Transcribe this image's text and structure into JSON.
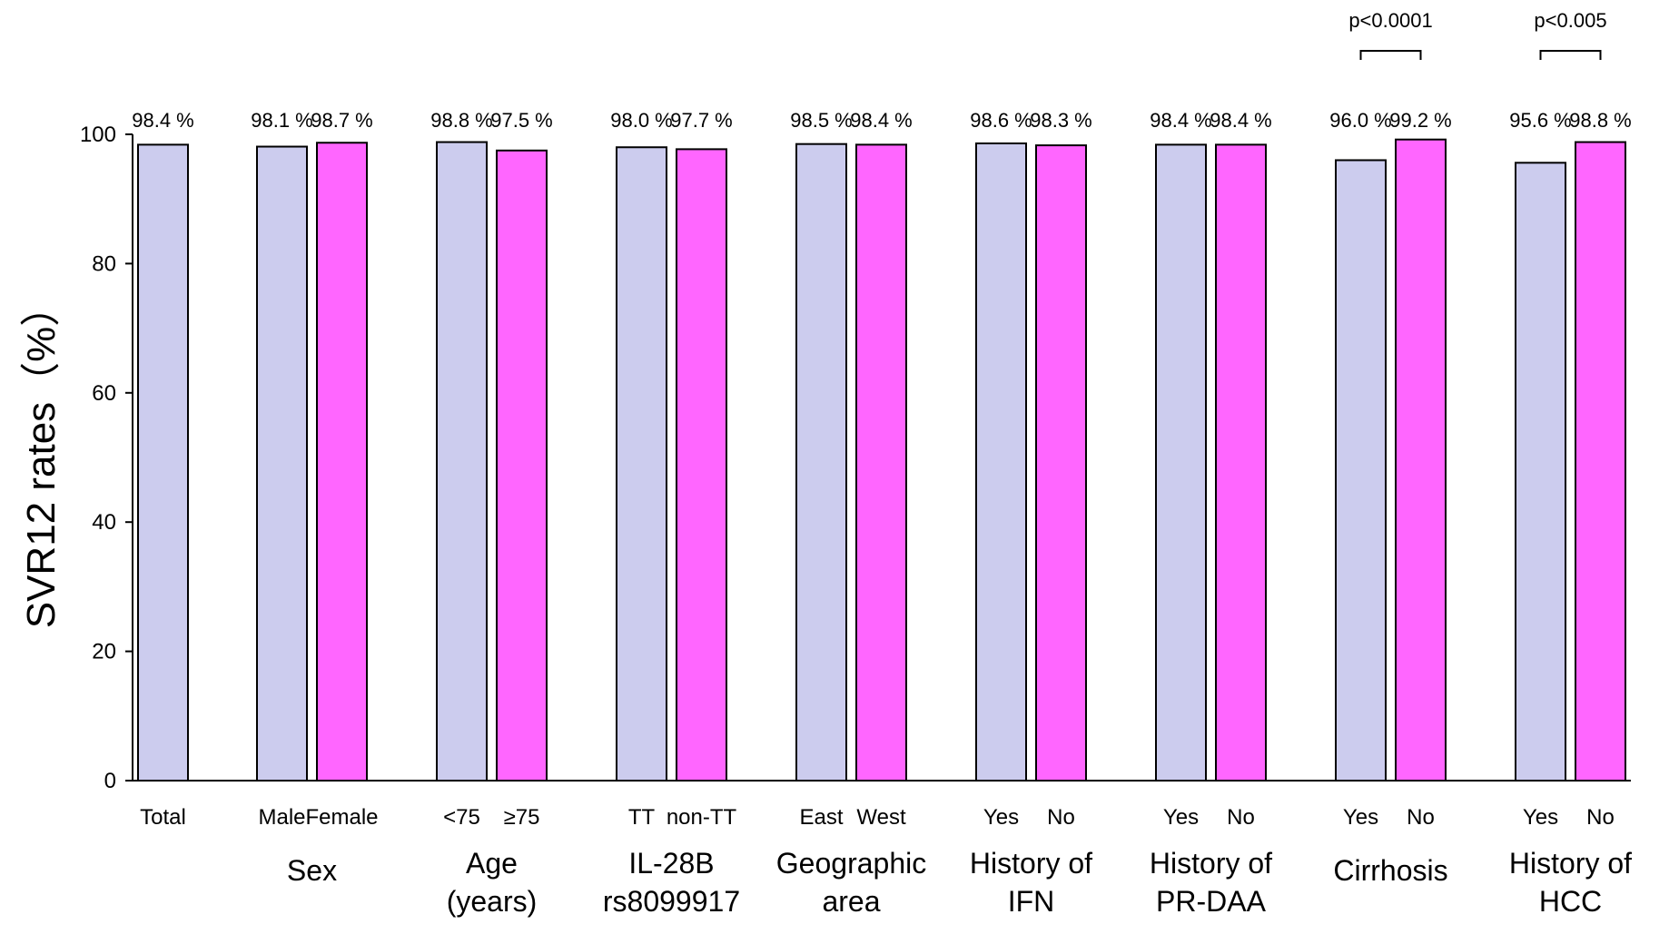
{
  "chart_data": {
    "type": "bar",
    "title": "",
    "xlabel": "",
    "ylabel": "SVR12 rates（%）",
    "ylim": [
      0,
      100
    ],
    "yticks": [
      0,
      20,
      40,
      60,
      80,
      100
    ],
    "unit_suffix": " %",
    "colors": {
      "group_a": "#ccccee",
      "group_b": "#ff66ff",
      "single": "#ccccee"
    },
    "groups": [
      {
        "label": [
          "Total"
        ],
        "label_in_category_row": true,
        "bars": [
          {
            "category": "Total",
            "value": 98.4,
            "value_label": "98.4 %",
            "color_key": "single"
          }
        ]
      },
      {
        "label": [
          "Sex"
        ],
        "bars": [
          {
            "category": "Male",
            "value": 98.1,
            "value_label": "98.1 %",
            "color_key": "group_a"
          },
          {
            "category": "Female",
            "value": 98.7,
            "value_label": "98.7 %",
            "color_key": "group_b"
          }
        ]
      },
      {
        "label": [
          "Age",
          "(years)"
        ],
        "bars": [
          {
            "category": "<75",
            "value": 98.8,
            "value_label": "98.8 %",
            "color_key": "group_a"
          },
          {
            "category": "≥75",
            "value": 97.5,
            "value_label": "97.5 %",
            "color_key": "group_b"
          }
        ]
      },
      {
        "label": [
          "IL-28B",
          "rs8099917"
        ],
        "bars": [
          {
            "category": "TT",
            "value": 98.0,
            "value_label": "98.0 %",
            "color_key": "group_a"
          },
          {
            "category": "non-TT",
            "value": 97.7,
            "value_label": "97.7 %",
            "color_key": "group_b"
          }
        ]
      },
      {
        "label": [
          "Geographic",
          "area"
        ],
        "bars": [
          {
            "category": "East",
            "value": 98.5,
            "value_label": "98.5 %",
            "color_key": "group_a"
          },
          {
            "category": "West",
            "value": 98.4,
            "value_label": "98.4 %",
            "color_key": "group_b"
          }
        ]
      },
      {
        "label": [
          "History of",
          "IFN"
        ],
        "bars": [
          {
            "category": "Yes",
            "value": 98.6,
            "value_label": "98.6 %",
            "color_key": "group_a"
          },
          {
            "category": "No",
            "value": 98.3,
            "value_label": "98.3 %",
            "color_key": "group_b"
          }
        ]
      },
      {
        "label": [
          "History of",
          "PR-DAA"
        ],
        "bars": [
          {
            "category": "Yes",
            "value": 98.4,
            "value_label": "98.4 %",
            "color_key": "group_a"
          },
          {
            "category": "No",
            "value": 98.4,
            "value_label": "98.4 %",
            "color_key": "group_b"
          }
        ]
      },
      {
        "label": [
          "Cirrhosis"
        ],
        "p_value": "p<0.0001",
        "bars": [
          {
            "category": "Yes",
            "value": 96.0,
            "value_label": "96.0 %",
            "color_key": "group_a"
          },
          {
            "category": "No",
            "value": 99.2,
            "value_label": "99.2 %",
            "color_key": "group_b"
          }
        ]
      },
      {
        "label": [
          "History of",
          "HCC"
        ],
        "p_value": "p<0.005",
        "bars": [
          {
            "category": "Yes",
            "value": 95.6,
            "value_label": "95.6 %",
            "color_key": "group_a"
          },
          {
            "category": "No",
            "value": 98.8,
            "value_label": "98.8 %",
            "color_key": "group_b"
          }
        ]
      }
    ]
  }
}
